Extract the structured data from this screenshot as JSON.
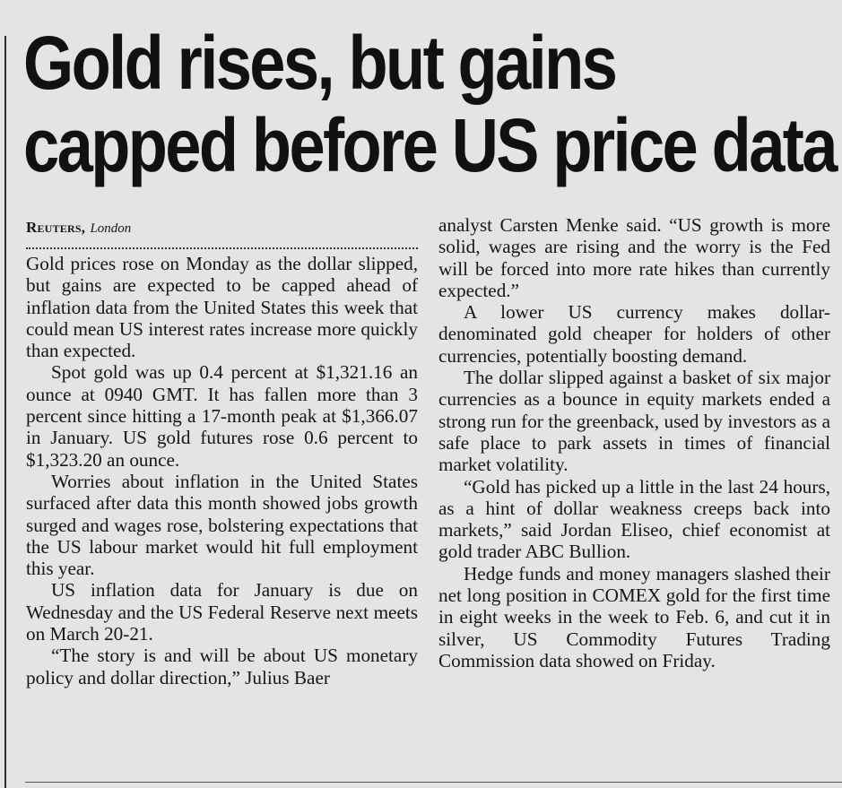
{
  "article": {
    "headline": "Gold rises, but gains capped before US price data",
    "byline": {
      "agency": "Reuters,",
      "location": "London"
    },
    "paragraphs": [
      "Gold prices rose on Monday as the dollar slipped, but gains are expected to be capped ahead of inflation data from the United States this week that could mean US interest rates increase more quickly than expected.",
      "Spot gold was up 0.4 percent at $1,321.16 an ounce at 0940 GMT. It has fallen more than 3 percent since hitting a 17-month peak at $1,366.07 in January. US gold futures rose 0.6 percent to $1,323.20 an ounce.",
      "Worries about inflation in the United States surfaced after data this month showed jobs growth surged and wages rose, bolstering expectations that the US labour market would hit full employment this year.",
      "US inflation data for January is due on Wednesday and the US Federal Reserve next meets on March 20-21.",
      "“The story is and will be about US monetary policy and dollar direction,” Julius Baer",
      "analyst Carsten Menke said. “US growth is more solid, wages are rising and the worry is the Fed will be forced into more rate hikes than currently expected.”",
      "A lower US currency makes dollar-denominated gold cheaper for holders of other currencies, potentially boosting demand.",
      "The dollar slipped against a basket of six major currencies as a bounce in equity markets ended a strong run for the greenback, used by investors as a safe place to park assets in times of financial market volatility.",
      "“Gold has picked up a little in the last 24 hours, as a hint of dollar weakness creeps back into markets,” said Jordan Eliseo, chief economist at gold trader ABC Bullion.",
      "Hedge funds and money managers slashed their net long position in COMEX gold for the first time in eight weeks in the week to Feb. 6, and cut it in silver, US Commodity Futures Trading Commission data showed on Friday."
    ]
  }
}
